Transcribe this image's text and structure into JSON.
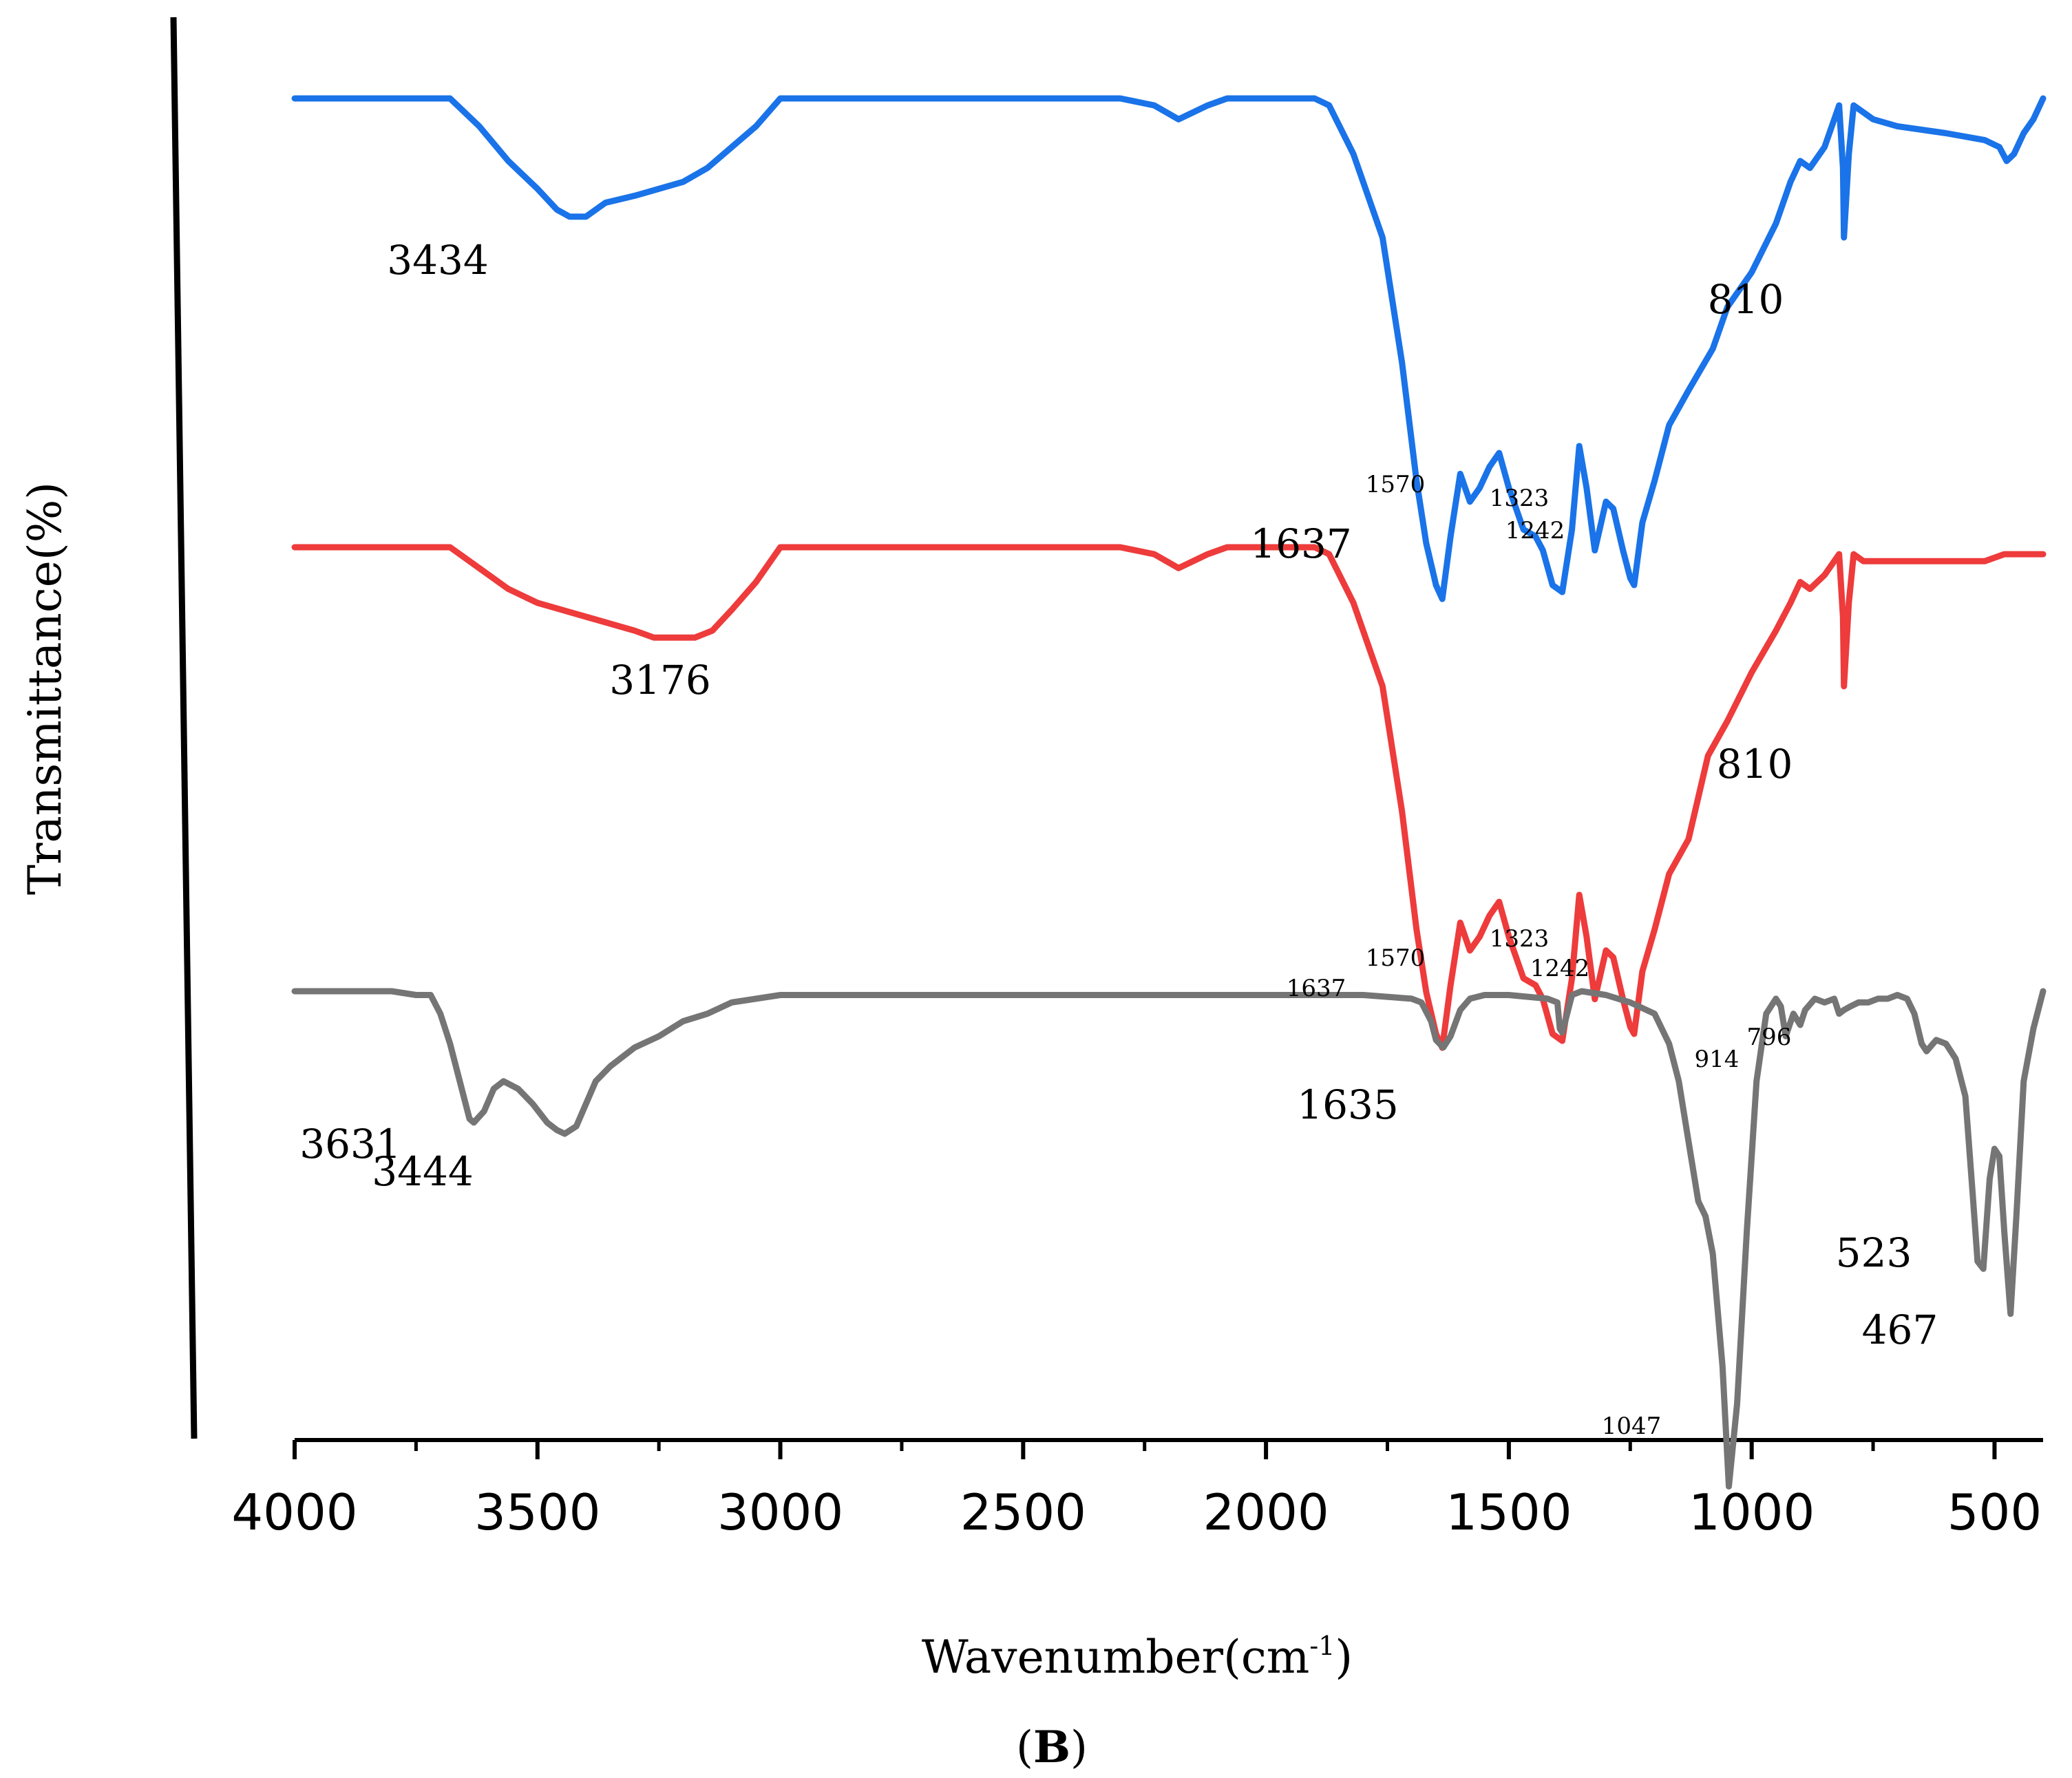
{
  "chart_data": {
    "type": "line",
    "title": "",
    "xlabel": "Wavenumber(cm",
    "xlabel_sup": "-1",
    "xlabel_close": ")",
    "ylabel": "Transmittance(%)",
    "panel_label": "B",
    "xlim": [
      4000,
      400
    ],
    "x_reversed": true,
    "grid": false,
    "y_ticks_shown": false,
    "legend": "none",
    "x_ticks": [
      4000,
      3500,
      3000,
      2500,
      2000,
      1500,
      1000,
      500
    ],
    "x_tick_labels": [
      "4000",
      "3500",
      "3000",
      "2500",
      "2000",
      "1500",
      "1000",
      "500"
    ],
    "series": [
      {
        "color": "#1a73e8",
        "x": [
          4000,
          3750,
          3680,
          3620,
          3560,
          3500,
          3460,
          3434,
          3400,
          3360,
          3300,
          3250,
          3200,
          3150,
          3100,
          3050,
          3000,
          2900,
          2700,
          2500,
          2300,
          2230,
          2180,
          2150,
          2120,
          2080,
          2000,
          1900,
          1870,
          1820,
          1760,
          1720,
          1690,
          1670,
          1650,
          1637,
          1620,
          1600,
          1580,
          1560,
          1540,
          1520,
          1500,
          1470,
          1445,
          1430,
          1410,
          1390,
          1370,
          1355,
          1340,
          1323,
          1300,
          1285,
          1265,
          1250,
          1242,
          1225,
          1200,
          1170,
          1130,
          1080,
          1050,
          1000,
          950,
          920,
          900,
          880,
          850,
          820,
          812,
          810,
          800,
          790,
          770,
          750,
          700,
          600,
          520,
          490,
          475,
          460,
          440,
          420,
          400
        ],
        "y": [
          100,
          100,
          100,
          96,
          91,
          87,
          84,
          83,
          83,
          85,
          86,
          87,
          88,
          90,
          93,
          96,
          100,
          100,
          100,
          100,
          100,
          99,
          97,
          98,
          99,
          100,
          100,
          100,
          99,
          92,
          80,
          62,
          45,
          36,
          30,
          28,
          37,
          46,
          42,
          44,
          47,
          49,
          44,
          38,
          37,
          35,
          30,
          29,
          38,
          50,
          44,
          35,
          42,
          41,
          35,
          31,
          30,
          39,
          45,
          53,
          58,
          64,
          70,
          75,
          82,
          88,
          91,
          90,
          93,
          99,
          90,
          80,
          92,
          99,
          98,
          97,
          96,
          95,
          94,
          93,
          91,
          92,
          95,
          97,
          100
        ]
      },
      {
        "color": "#ee3b3b",
        "x": [
          4000,
          3750,
          3680,
          3620,
          3560,
          3500,
          3450,
          3400,
          3350,
          3300,
          3260,
          3230,
          3200,
          3176,
          3140,
          3100,
          3050,
          3000,
          2950,
          2700,
          2500,
          2300,
          2230,
          2180,
          2150,
          2120,
          2080,
          2000,
          1900,
          1870,
          1820,
          1760,
          1720,
          1690,
          1670,
          1650,
          1637,
          1620,
          1600,
          1580,
          1560,
          1540,
          1520,
          1500,
          1470,
          1445,
          1430,
          1410,
          1390,
          1370,
          1355,
          1340,
          1323,
          1300,
          1285,
          1265,
          1250,
          1242,
          1225,
          1200,
          1170,
          1130,
          1090,
          1050,
          1000,
          950,
          920,
          900,
          880,
          850,
          820,
          812,
          810,
          800,
          790,
          770,
          750,
          700,
          600,
          520,
          480,
          460,
          440,
          420,
          400
        ],
        "y": [
          100,
          100,
          100,
          97,
          94,
          92,
          91,
          90,
          89,
          88,
          87,
          87,
          87,
          87,
          88,
          91,
          95,
          100,
          100,
          100,
          100,
          100,
          99,
          97,
          98,
          99,
          100,
          100,
          100,
          99,
          92,
          80,
          62,
          45,
          36,
          30,
          28,
          37,
          46,
          42,
          44,
          47,
          49,
          44,
          38,
          37,
          35,
          30,
          29,
          38,
          50,
          44,
          35,
          42,
          41,
          35,
          31,
          30,
          39,
          45,
          53,
          58,
          70,
          75,
          82,
          88,
          92,
          95,
          94,
          96,
          99,
          90,
          80,
          92,
          99,
          98,
          98,
          98,
          98,
          98,
          99,
          99,
          99,
          99,
          99
        ]
      },
      {
        "color": "#757575",
        "x": [
          4000,
          3800,
          3750,
          3720,
          3700,
          3680,
          3660,
          3640,
          3631,
          3610,
          3590,
          3570,
          3540,
          3510,
          3480,
          3460,
          3444,
          3420,
          3400,
          3380,
          3350,
          3300,
          3250,
          3200,
          3150,
          3100,
          3000,
          2800,
          2600,
          2400,
          2200,
          2000,
          1800,
          1700,
          1680,
          1660,
          1650,
          1635,
          1620,
          1600,
          1580,
          1550,
          1500,
          1420,
          1400,
          1395,
          1390,
          1380,
          1370,
          1350,
          1300,
          1250,
          1200,
          1170,
          1150,
          1130,
          1110,
          1095,
          1080,
          1060,
          1047,
          1030,
          1010,
          990,
          970,
          950,
          940,
          930,
          914,
          900,
          890,
          870,
          850,
          830,
          820,
          810,
          796,
          780,
          760,
          740,
          720,
          700,
          680,
          665,
          650,
          640,
          620,
          600,
          580,
          560,
          545,
          535,
          523,
          510,
          500,
          490,
          480,
          467,
          455,
          440,
          420,
          400
        ],
        "y": [
          100,
          100,
          99.5,
          99.5,
          97,
          93,
          88,
          83,
          82.5,
          84,
          87,
          88,
          87,
          85,
          82.5,
          81.5,
          81,
          82,
          85,
          88,
          90,
          92.5,
          94,
          96,
          97,
          98.5,
          99.5,
          99.5,
          99.5,
          99.5,
          99.5,
          99.5,
          99.5,
          99,
          98.5,
          96,
          93.5,
          92.5,
          94,
          97.5,
          99,
          99.5,
          99.5,
          99,
          98.5,
          95,
          94.5,
          97,
          99.5,
          100,
          99.5,
          98.5,
          97,
          93,
          88,
          80,
          72,
          70,
          65,
          50,
          34,
          45,
          68,
          88,
          97,
          99,
          98,
          94,
          97,
          95.5,
          97.5,
          99,
          98.5,
          99,
          97,
          97.5,
          98,
          98.5,
          98.5,
          99,
          99,
          99.5,
          99,
          97,
          93,
          92,
          93.5,
          93,
          91,
          86,
          73,
          64,
          63,
          75,
          79,
          78,
          68,
          57,
          70,
          88,
          95,
          100
        ]
      }
    ],
    "annotations": [
      {
        "text": "3434",
        "size": "big",
        "series": 0,
        "x": 3434
      },
      {
        "text": "810",
        "size": "big",
        "series": 0,
        "x": 810
      },
      {
        "text": "1570",
        "size": "small",
        "series": 0,
        "x": 1570
      },
      {
        "text": "1323",
        "size": "small",
        "series": 0,
        "x": 1323
      },
      {
        "text": "1242",
        "size": "small",
        "series": 0,
        "x": 1242
      },
      {
        "text": "1637",
        "size": "big",
        "series": 0,
        "x": 1637
      },
      {
        "text": "3176",
        "size": "big",
        "series": 1,
        "x": 3176
      },
      {
        "text": "810",
        "size": "big",
        "series": 1,
        "x": 810
      },
      {
        "text": "1570",
        "size": "small",
        "series": 1,
        "x": 1570
      },
      {
        "text": "1323",
        "size": "small",
        "series": 1,
        "x": 1323
      },
      {
        "text": "1242",
        "size": "small",
        "series": 1,
        "x": 1242
      },
      {
        "text": "1637",
        "size": "small",
        "series": 1,
        "x": 1637
      },
      {
        "text": "914",
        "size": "small",
        "series": 2,
        "x": 914
      },
      {
        "text": "796",
        "size": "small",
        "series": 2,
        "x": 796
      },
      {
        "text": "1635",
        "size": "big",
        "series": 2,
        "x": 1635
      },
      {
        "text": "3631",
        "size": "big",
        "series": 2,
        "x": 3631
      },
      {
        "text": "3444",
        "size": "big",
        "series": 2,
        "x": 3444
      },
      {
        "text": "523",
        "size": "big",
        "series": 2,
        "x": 523
      },
      {
        "text": "467",
        "size": "big",
        "series": 2,
        "x": 467
      },
      {
        "text": "1047",
        "size": "small",
        "series": 2,
        "x": 1047
      }
    ]
  }
}
